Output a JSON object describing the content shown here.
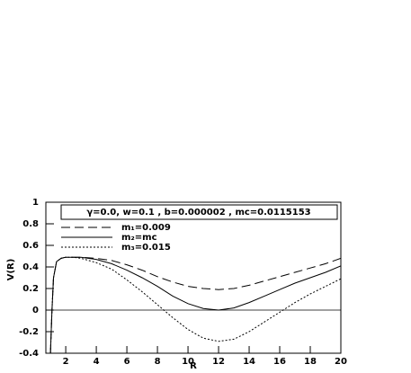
{
  "chart_data": {
    "type": "line",
    "legend_title": "γ=0.0, w=0.1 , b=0.000002 , mc=0.0115153",
    "x_label": "R",
    "y_label": "V(R)",
    "x": [
      1,
      1.1,
      1.2,
      1.4,
      1.7,
      2,
      2.5,
      3,
      4,
      5,
      6,
      7,
      8,
      9,
      10,
      11,
      12,
      13,
      14,
      15,
      16,
      17,
      18,
      19,
      20
    ],
    "series": [
      {
        "name": "m₁=0.009",
        "color": "#000000",
        "dash": "dashed",
        "values": [
          -0.4,
          0,
          0.3,
          0.45,
          0.48,
          0.49,
          0.49,
          0.49,
          0.48,
          0.46,
          0.42,
          0.37,
          0.31,
          0.26,
          0.22,
          0.2,
          0.19,
          0.2,
          0.23,
          0.27,
          0.31,
          0.35,
          0.39,
          0.43,
          0.48
        ]
      },
      {
        "name": "m₂=mc",
        "color": "#000000",
        "dash": "solid",
        "values": [
          -0.4,
          0,
          0.3,
          0.45,
          0.48,
          0.49,
          0.49,
          0.49,
          0.47,
          0.43,
          0.37,
          0.3,
          0.22,
          0.13,
          0.06,
          0.015,
          0,
          0.02,
          0.07,
          0.13,
          0.19,
          0.25,
          0.3,
          0.35,
          0.41
        ]
      },
      {
        "name": "m₃=0.015",
        "color": "#000000",
        "dash": "dotted",
        "values": [
          -0.4,
          0,
          0.3,
          0.45,
          0.48,
          0.49,
          0.49,
          0.48,
          0.44,
          0.38,
          0.28,
          0.17,
          0.05,
          -0.07,
          -0.18,
          -0.26,
          -0.29,
          -0.27,
          -0.2,
          -0.11,
          -0.02,
          0.07,
          0.15,
          0.22,
          0.29
        ]
      }
    ],
    "xlim": [
      0.7,
      20
    ],
    "ylim": [
      -0.4,
      1
    ],
    "xticks": [
      2,
      4,
      6,
      8,
      10,
      12,
      14,
      16,
      18,
      20
    ],
    "yticks": [
      -0.4,
      -0.2,
      0,
      0.2,
      0.4,
      0.6,
      0.8,
      1
    ],
    "zero_line": true,
    "grid": false
  }
}
